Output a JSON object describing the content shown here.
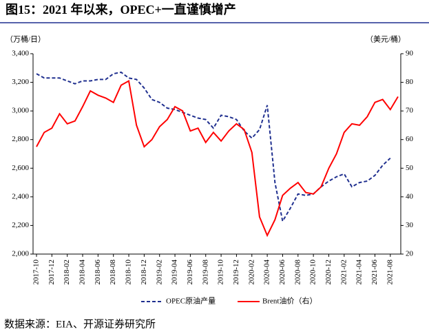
{
  "chart_data": {
    "type": "line",
    "title": "图15：2021 年以来，OPEC+一直谨慎增产",
    "y_label": "（万桶/日）",
    "y2_label": "（美元/桶）",
    "source": "数据来源：EIA、开源证券研究所",
    "categories": [
      "2017-10",
      null,
      "2017-12",
      null,
      "2018-02",
      null,
      "2018-04",
      null,
      "2018-06",
      null,
      "2018-08",
      null,
      "2018-10",
      null,
      "2018-12",
      null,
      "2019-02",
      null,
      "2019-04",
      null,
      "2019-06",
      null,
      "2019-08",
      null,
      "2019-10",
      null,
      "2019-12",
      null,
      "2020-02",
      null,
      "2020-04",
      null,
      "2020-06",
      null,
      "2020-08",
      null,
      "2020-10",
      null,
      "2020-12",
      null,
      "2021-02",
      null,
      "2021-04",
      null,
      "2021-06",
      null,
      "2021-08",
      null
    ],
    "series": [
      {
        "name": "OPEC原油产量",
        "color": "#1f2f8f",
        "dashed": true,
        "axis": "y",
        "values": [
          3260,
          3230,
          3230,
          3230,
          3210,
          3190,
          3210,
          3210,
          3220,
          3220,
          3260,
          3270,
          3230,
          3220,
          3160,
          3080,
          3060,
          3020,
          3010,
          2990,
          2970,
          2950,
          2940,
          2880,
          2970,
          2960,
          2940,
          2860,
          2810,
          2870,
          3040,
          2500,
          2230,
          2320,
          2420,
          2410,
          2420,
          2470,
          2510,
          2540,
          2560,
          2470,
          2500,
          2510,
          2550,
          2620,
          2670,
          null
        ]
      },
      {
        "name": "Brent油价（右）",
        "color": "#ff0000",
        "dashed": false,
        "axis": "y2",
        "values": [
          57.5,
          62.5,
          64,
          69,
          65.5,
          66.5,
          71.5,
          77,
          75.5,
          74.5,
          73,
          79,
          80.5,
          65,
          57.5,
          60,
          64.5,
          67,
          71.5,
          70,
          63,
          64,
          59,
          62.5,
          59.5,
          63,
          65.5,
          63.5,
          55.5,
          33,
          26.5,
          32,
          40.5,
          43,
          45,
          41.5,
          41,
          43.5,
          50,
          55,
          62.5,
          65.5,
          65,
          68,
          73,
          74,
          70.5,
          75
        ]
      }
    ],
    "ylim": [
      2000,
      3400
    ],
    "yticks": [
      {
        "value": 2000,
        "label": "2,000"
      },
      {
        "value": 2200,
        "label": "2,200"
      },
      {
        "value": 2400,
        "label": "2,400"
      },
      {
        "value": 2600,
        "label": "2,600"
      },
      {
        "value": 2800,
        "label": "2,800"
      },
      {
        "value": 3000,
        "label": "3,000"
      },
      {
        "value": 3200,
        "label": "3,200"
      },
      {
        "value": 3400,
        "label": "3,400"
      }
    ],
    "y2lim": [
      20,
      90
    ],
    "y2ticks": [
      20,
      30,
      40,
      50,
      60,
      70,
      80,
      90
    ],
    "grid": false
  }
}
